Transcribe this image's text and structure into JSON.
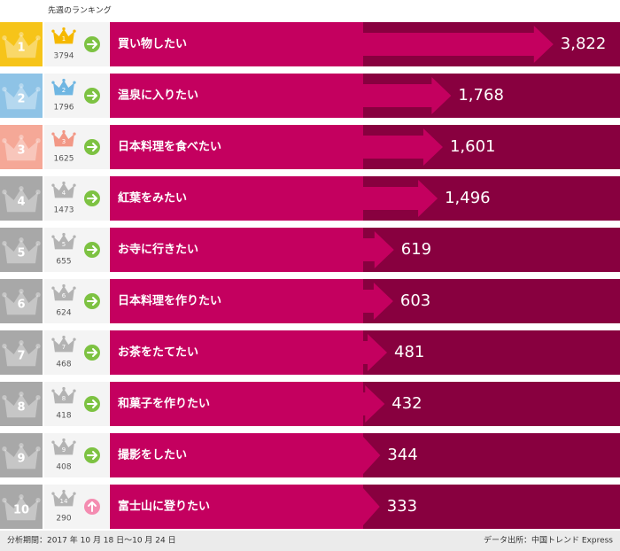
{
  "chart_data": {
    "type": "bar",
    "header": "先週のランキング",
    "ranks": [
      1,
      2,
      3,
      4,
      5,
      6,
      7,
      8,
      9,
      10
    ],
    "categories": [
      "買い物したい",
      "温泉に入りたい",
      "日本料理を食べたい",
      "紅葉をみたい",
      "お寺に行きたい",
      "日本料理を作りたい",
      "お茶をたてたい",
      "和菓子を作りたい",
      "撮影をしたい",
      "富士山に登りたい"
    ],
    "values": [
      3822,
      1768,
      1601,
      1496,
      619,
      603,
      481,
      432,
      344,
      333
    ],
    "value_labels": [
      "3,822",
      "1,768",
      "1,601",
      "1,496",
      "619",
      "603",
      "481",
      "432",
      "344",
      "333"
    ],
    "prev_ranks": [
      1,
      2,
      3,
      4,
      5,
      6,
      7,
      8,
      9,
      14
    ],
    "prev_values": [
      3794,
      1796,
      1625,
      1473,
      655,
      624,
      468,
      418,
      408,
      290
    ],
    "trend": [
      "same",
      "same",
      "same",
      "same",
      "same",
      "same",
      "same",
      "same",
      "same",
      "up"
    ],
    "rank_colors": [
      "#f6c419",
      "#8ec3e6",
      "#f5a897",
      "#a8a8a8",
      "#a8a8a8",
      "#a8a8a8",
      "#a8a8a8",
      "#a8a8a8",
      "#a8a8a8",
      "#a8a8a8"
    ],
    "crown_colors": [
      "#f5b800",
      "#6fb6e2",
      "#f29886",
      "#b3b3b3",
      "#b3b3b3",
      "#b3b3b3",
      "#b3b3b3",
      "#b3b3b3",
      "#b3b3b3",
      "#b3b3b3"
    ],
    "bar_color": "#c4005f",
    "track_color": "#88003f",
    "xlim": [
      0,
      5160
    ],
    "footer": {
      "period": "分析期間：2017 年 10 月 18 日〜10 月 24 日",
      "source": "データ出所：中国トレンド Express"
    }
  }
}
